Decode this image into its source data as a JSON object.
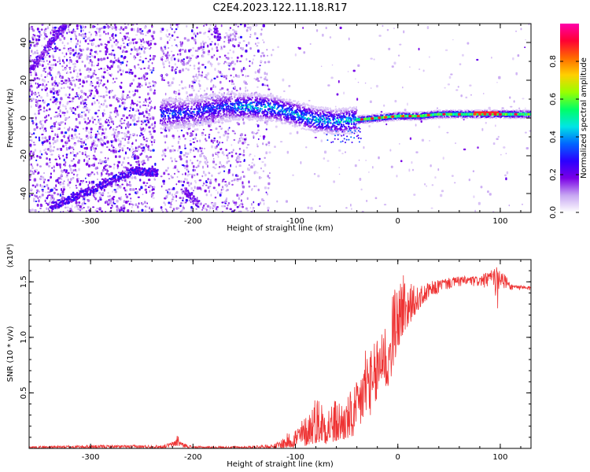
{
  "figure": {
    "title": "C2E4.2023.122.11.18.R17"
  },
  "chart_data": [
    {
      "type": "heatmap",
      "xlabel": "Height of straight line (km)",
      "ylabel": "Frequency (Hz)",
      "xlim": [
        -360,
        130
      ],
      "ylim": [
        -50,
        50
      ],
      "xticks": [
        -300,
        -200,
        -100,
        0,
        100
      ],
      "xtick_labels": [
        "-300",
        "-200",
        "-100",
        "0",
        "100"
      ],
      "yticks": [
        -40,
        -20,
        0,
        20,
        40
      ],
      "ytick_labels": [
        "-40",
        "-20",
        "0",
        "20",
        "40"
      ],
      "colorbar": {
        "label": "Normalized spectral amplitude",
        "range": [
          0,
          1
        ],
        "ticks": [
          0,
          0.2,
          0.4,
          0.6,
          0.8
        ],
        "tick_labels": [
          "0.0",
          "0.2",
          "0.4",
          "0.6",
          "0.8"
        ],
        "colormap": [
          "#ffffff",
          "#c7a6f2",
          "#7a00e6",
          "#2b00ff",
          "#0066ff",
          "#00e5e5",
          "#00ff66",
          "#99ff00",
          "#ffd000",
          "#ff6a00",
          "#ff0033",
          "#ff00aa"
        ]
      },
      "features": {
        "main_band": [
          [
            -230,
            2
          ],
          [
            -200,
            3
          ],
          [
            -170,
            6
          ],
          [
            -140,
            6
          ],
          [
            -120,
            5
          ],
          [
            -100,
            2
          ],
          [
            -80,
            -1
          ],
          [
            -60,
            -2
          ],
          [
            -40,
            -1
          ],
          [
            -20,
            0
          ],
          [
            0,
            1
          ],
          [
            20,
            1
          ],
          [
            40,
            2
          ],
          [
            60,
            2
          ],
          [
            80,
            2
          ],
          [
            100,
            2
          ],
          [
            130,
            2
          ]
        ],
        "upper_streak": [
          [
            -360,
            25
          ],
          [
            -340,
            40
          ],
          [
            -325,
            50
          ]
        ],
        "lower_streak": [
          [
            -340,
            -47
          ],
          [
            -300,
            -38
          ],
          [
            -260,
            -28
          ],
          [
            -235,
            -29
          ]
        ],
        "secondary_streaks": [
          [
            -210,
            -38
          ],
          [
            -195,
            -46
          ],
          [
            -180,
            48
          ],
          [
            -175,
            42
          ]
        ],
        "data_gap_x": [
          -237,
          -232
        ]
      }
    },
    {
      "type": "line",
      "xlabel": "Height of straight line (km)",
      "ylabel": "SNR (10 * v/v)",
      "scale_label": "(x10⁴)",
      "xlim": [
        -360,
        130
      ],
      "ylim": [
        0,
        1.7
      ],
      "xticks": [
        -300,
        -200,
        -100,
        0,
        100
      ],
      "xtick_labels": [
        "-300",
        "-200",
        "-100",
        "0",
        "100"
      ],
      "yticks": [
        0.5,
        1.0,
        1.5
      ],
      "ytick_labels": [
        "0.5",
        "1.0",
        "1.5"
      ],
      "color": "#ee3333",
      "envelope": {
        "x": [
          -360,
          -300,
          -230,
          -220,
          -215,
          -210,
          -200,
          -150,
          -120,
          -110,
          -100,
          -90,
          -80,
          -70,
          -60,
          -50,
          -45,
          -40,
          -30,
          -25,
          -20,
          -15,
          -10,
          -5,
          0,
          5,
          10,
          20,
          30,
          40,
          60,
          80,
          100,
          110,
          130
        ],
        "low": [
          0.0,
          0.0,
          0.0,
          0.01,
          0.02,
          0.01,
          0.0,
          0.0,
          0.0,
          0.0,
          0.01,
          0.02,
          0.05,
          0.04,
          0.05,
          0.08,
          0.08,
          0.12,
          0.3,
          0.3,
          0.4,
          0.6,
          0.5,
          0.7,
          0.9,
          1.0,
          1.1,
          1.25,
          1.35,
          1.4,
          1.44,
          1.44,
          1.4,
          1.42,
          1.42
        ],
        "high": [
          0.02,
          0.03,
          0.03,
          0.06,
          0.14,
          0.05,
          0.02,
          0.02,
          0.04,
          0.12,
          0.2,
          0.3,
          0.5,
          0.42,
          0.45,
          0.45,
          0.55,
          0.6,
          1.05,
          0.85,
          1.1,
          1.3,
          1.05,
          1.4,
          1.5,
          1.65,
          1.5,
          1.45,
          1.5,
          1.52,
          1.55,
          1.55,
          1.65,
          1.48,
          1.46
        ]
      }
    }
  ]
}
